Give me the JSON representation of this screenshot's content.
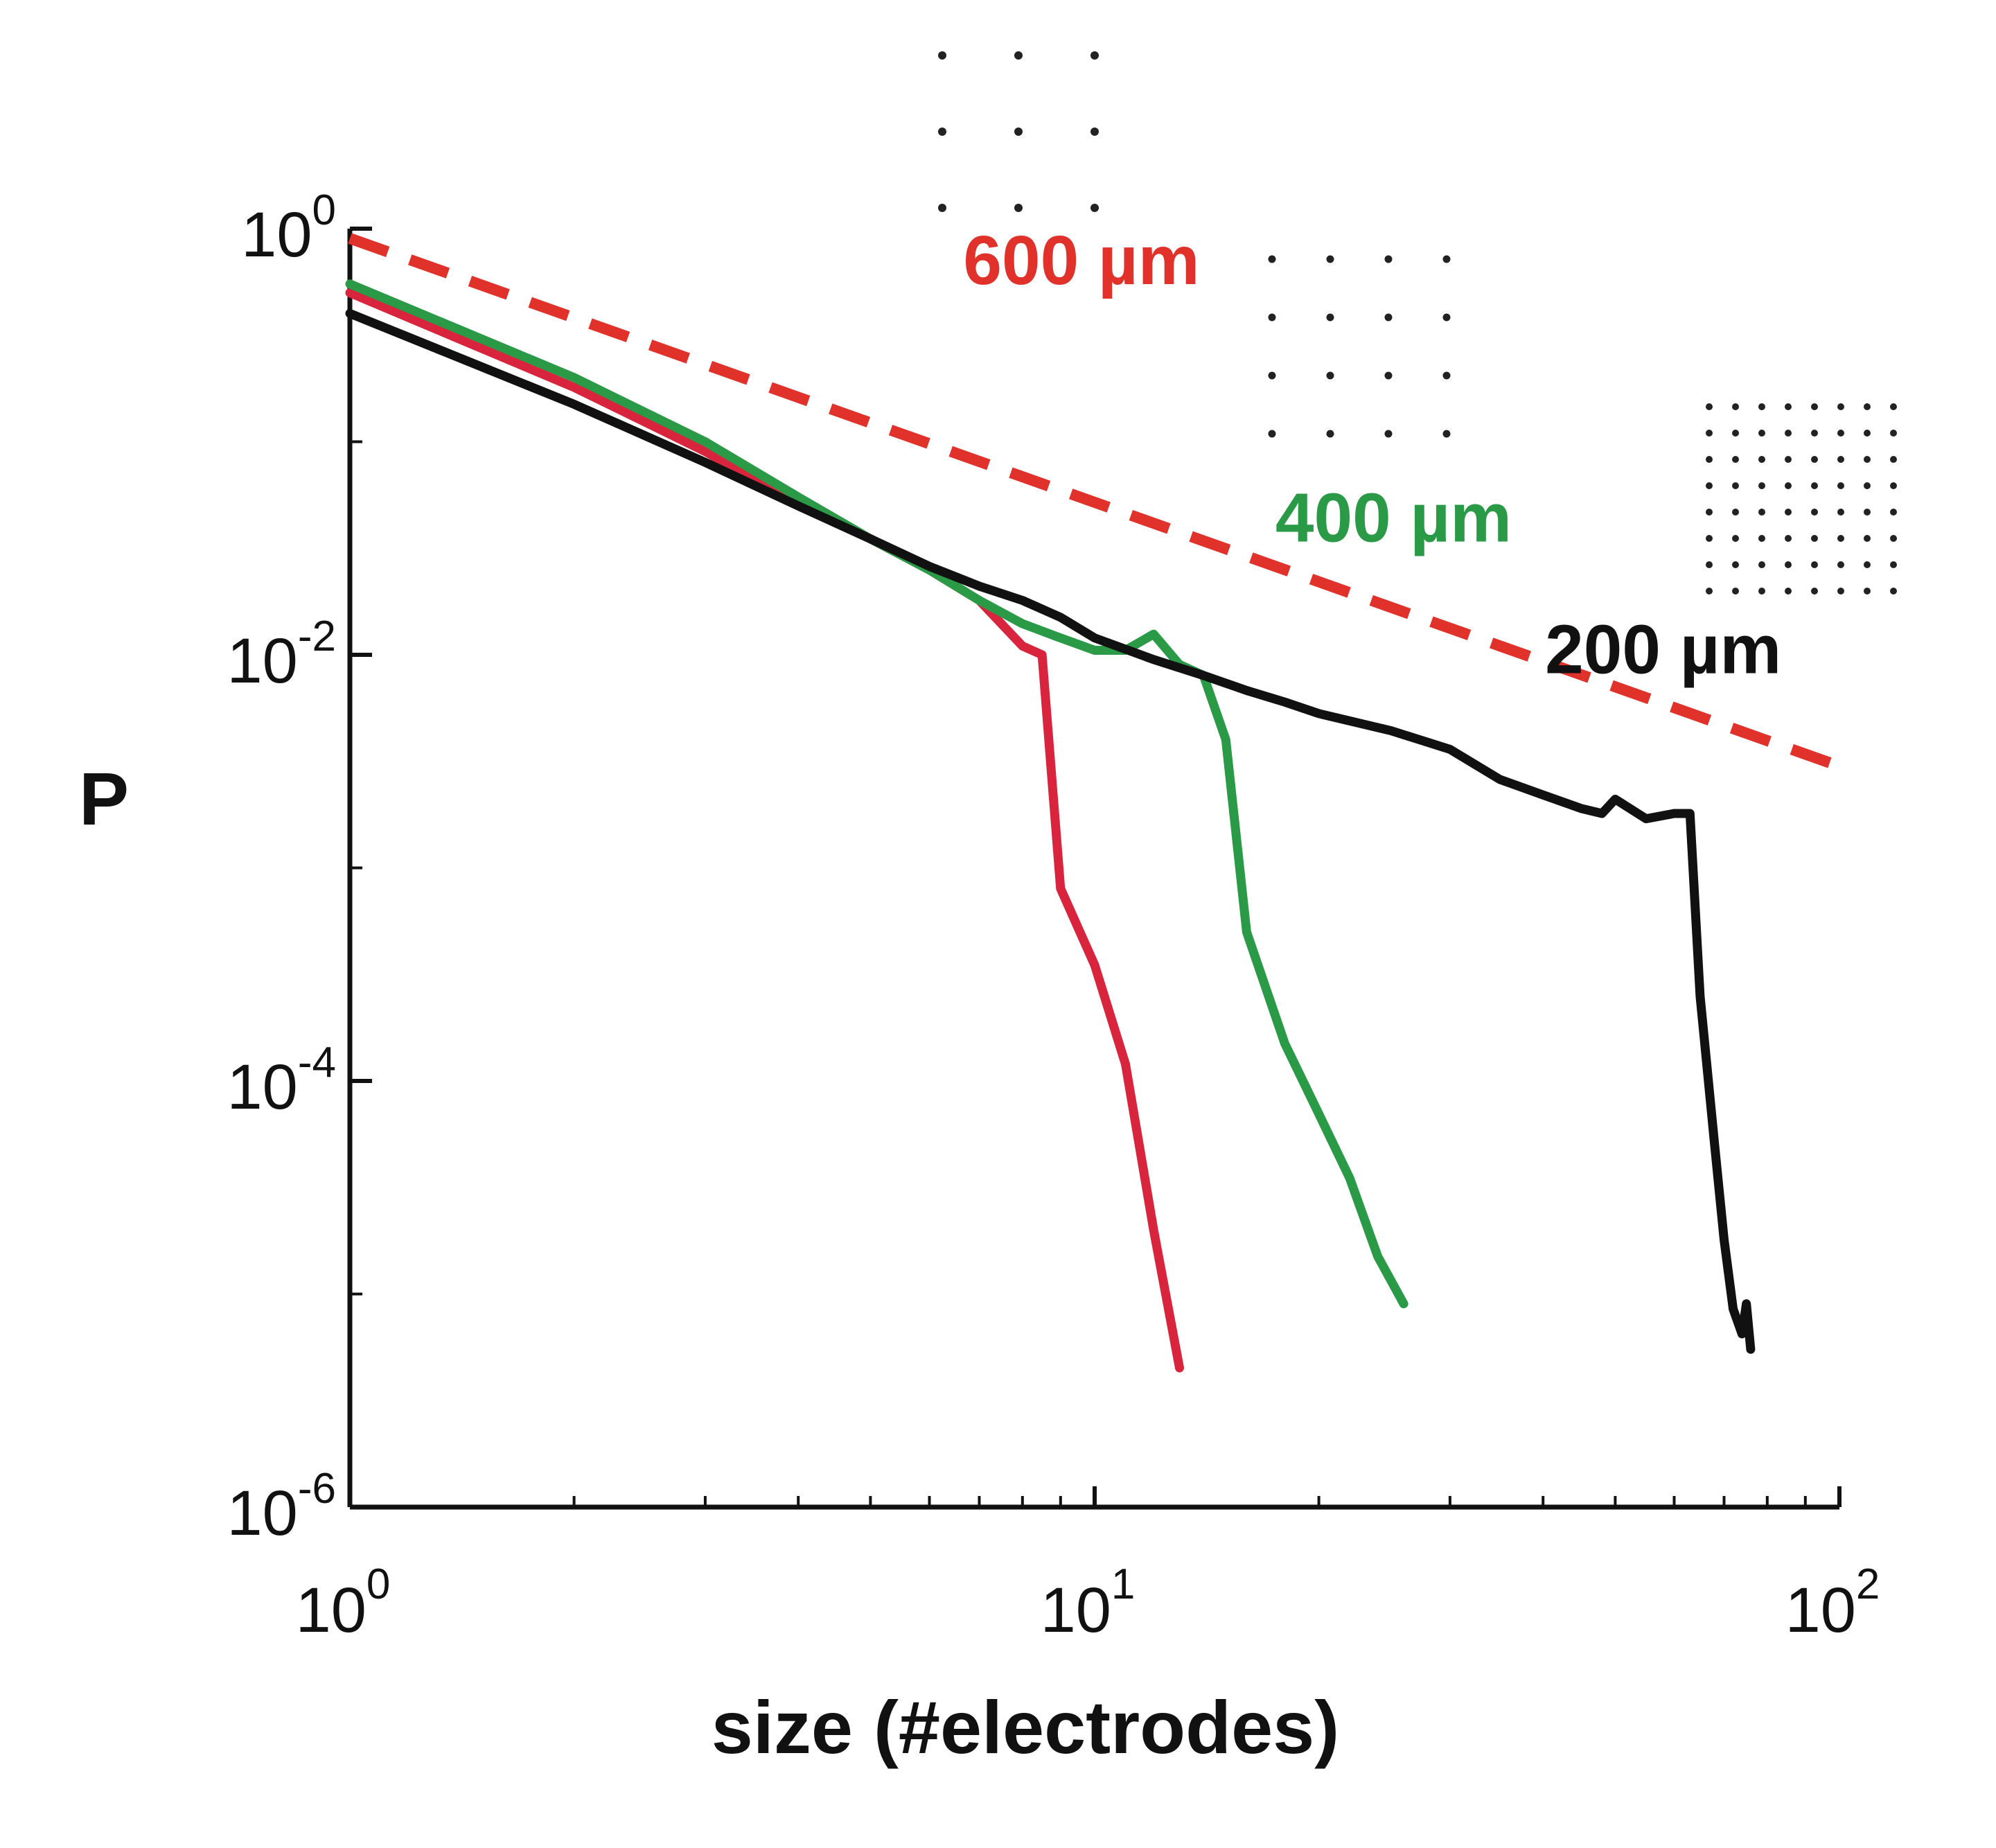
{
  "chart_data": {
    "type": "line",
    "xlabel": "size (#electrodes)",
    "ylabel": "P",
    "xscale": "log",
    "yscale": "log",
    "xlim": [
      1,
      100
    ],
    "ylim": [
      1e-06,
      1
    ],
    "grid": false,
    "x_ticks": [
      {
        "base": "10",
        "exp": "0",
        "value": 1
      },
      {
        "base": "10",
        "exp": "1",
        "value": 10
      },
      {
        "base": "10",
        "exp": "2",
        "value": 100
      }
    ],
    "y_ticks": [
      {
        "base": "10",
        "exp": "0",
        "value": 1
      },
      {
        "base": "10",
        "exp": "-2",
        "value": 0.01
      },
      {
        "base": "10",
        "exp": "-4",
        "value": 0.0001
      },
      {
        "base": "10",
        "exp": "-6",
        "value": 1e-06
      }
    ],
    "series": [
      {
        "color": "#d8243c",
        "style": "solid",
        "x": [
          1,
          2,
          3,
          4,
          5,
          6,
          7,
          8,
          8.5,
          9,
          10,
          11,
          12,
          13
        ],
        "y": [
          0.5,
          0.18,
          0.09,
          0.05,
          0.035,
          0.025,
          0.018,
          0.011,
          0.01,
          0.0008,
          0.00035,
          0.00012,
          2e-05,
          4.5e-06
        ]
      },
      {
        "color": "#2a9a46",
        "style": "solid",
        "x": [
          1,
          2,
          3,
          4,
          5,
          6,
          7,
          8,
          9,
          10,
          11,
          12,
          13,
          14,
          15,
          16,
          18,
          20,
          22,
          24,
          26
        ],
        "y": [
          0.55,
          0.2,
          0.1,
          0.055,
          0.035,
          0.025,
          0.018,
          0.014,
          0.012,
          0.0105,
          0.0105,
          0.0125,
          0.009,
          0.008,
          0.004,
          0.0005,
          0.00015,
          7e-05,
          3.5e-05,
          1.5e-05,
          9e-06
        ]
      },
      {
        "color": "#111111",
        "style": "solid",
        "x": [
          1,
          2,
          3,
          4,
          5,
          6,
          7,
          8,
          9,
          10,
          12,
          14,
          16,
          18,
          20,
          25,
          30,
          35,
          40,
          45,
          48,
          50,
          55,
          60,
          63,
          65,
          68,
          70,
          72,
          74,
          75,
          76
        ],
        "y": [
          0.4,
          0.15,
          0.08,
          0.05,
          0.035,
          0.026,
          0.021,
          0.018,
          0.015,
          0.012,
          0.0095,
          0.008,
          0.0068,
          0.006,
          0.0053,
          0.0044,
          0.0036,
          0.0026,
          0.0022,
          0.0019,
          0.0018,
          0.0021,
          0.0017,
          0.0018,
          0.0018,
          0.00025,
          5e-05,
          1.8e-05,
          8.5e-06,
          6.5e-06,
          9e-06,
          5.5e-06
        ]
      },
      {
        "color": "#e0322a",
        "style": "dashed",
        "x": [
          1,
          100
        ],
        "y": [
          0.9,
          0.003
        ]
      }
    ],
    "annotations": [
      {
        "text": "600 µm",
        "color": "#e0322a",
        "x": 9.6,
        "y": 0.55,
        "grid_cols": 3,
        "grid_rows": 3
      },
      {
        "text": "400 µm",
        "color": "#2a9a46",
        "x": 25.2,
        "y": 0.034,
        "grid_cols": 4,
        "grid_rows": 4
      },
      {
        "text": "200 µm",
        "color": "#111111",
        "x": 58,
        "y": 0.0082,
        "grid_cols": 8,
        "grid_rows": 8
      }
    ]
  }
}
